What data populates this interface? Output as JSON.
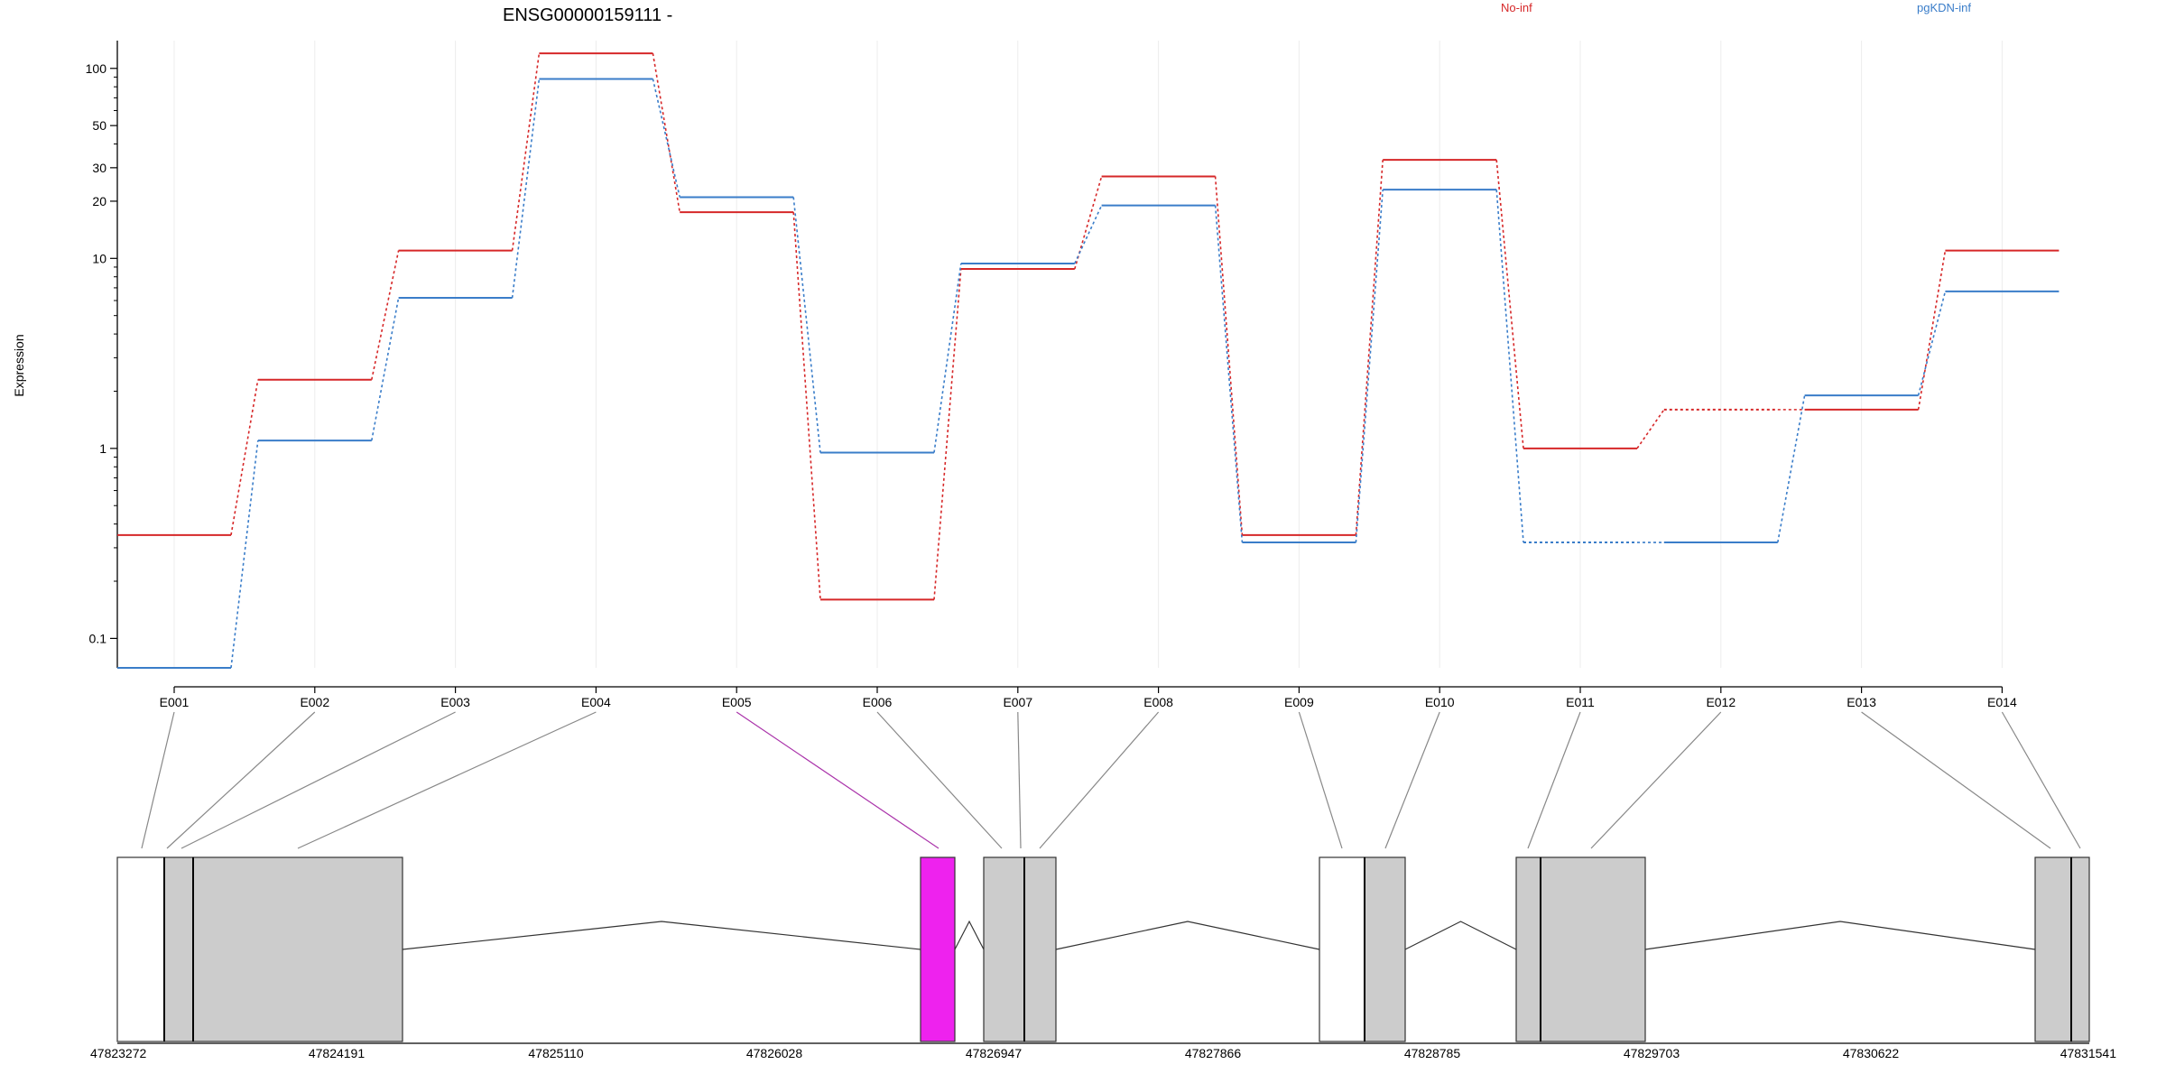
{
  "chart_data": {
    "type": "line",
    "title": "ENSG00000159111 -",
    "ylabel": "Expression",
    "yscale": "log",
    "ylim": [
      0.07,
      140
    ],
    "yticks": [
      0.1,
      1,
      10,
      20,
      30,
      50,
      100
    ],
    "ytick_labels": [
      "0.1",
      "1",
      "10",
      "20",
      "30",
      "50",
      "100"
    ],
    "grid": "vertical, light",
    "legend_placement": "top, right",
    "categories": [
      "E001",
      "E002",
      "E003",
      "E004",
      "E005",
      "E006",
      "E007",
      "E008",
      "E009",
      "E010",
      "E011",
      "E012",
      "E013",
      "E014"
    ],
    "series": [
      {
        "name": "No-inf",
        "color": "#d62728",
        "values": [
          0.35,
          2.3,
          11,
          120,
          17.5,
          0.16,
          8.8,
          27,
          0.35,
          33,
          1.0,
          1.6,
          1.6,
          11
        ],
        "dotted_segments": [
          11
        ]
      },
      {
        "name": "pgKDN-inf",
        "color": "#3a7dc9",
        "values": [
          0.07,
          1.1,
          6.2,
          88,
          21,
          0.95,
          9.4,
          19,
          0.32,
          23,
          0.32,
          0.32,
          1.9,
          6.7
        ],
        "dotted_segments": [
          10
        ]
      }
    ],
    "gene_model": {
      "coordinate_labels": [
        "47823272",
        "47824191",
        "47825110",
        "47826028",
        "47826947",
        "47827866",
        "47828785",
        "47829703",
        "47830622",
        "47831541"
      ],
      "highlighted_exon": "E005",
      "highlight_color": "#ee22ee",
      "exon_fill": "#cccccc"
    }
  }
}
